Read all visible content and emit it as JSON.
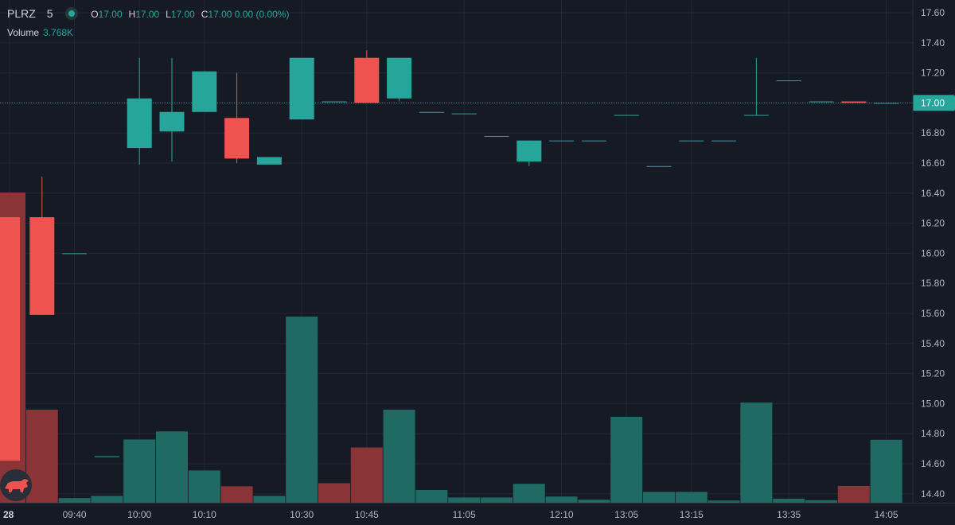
{
  "symbol": {
    "ticker": "PLRZ",
    "interval": "5",
    "status": "market-open"
  },
  "ohlc": {
    "o_label": "O",
    "o": "17.00",
    "h_label": "H",
    "h": "17.00",
    "l_label": "L",
    "l": "17.00",
    "c_label": "C",
    "c": "17.00 0.00 (0.00%)"
  },
  "volume": {
    "label": "Volume",
    "value": "3.768K"
  },
  "colors": {
    "up": "#26a69a",
    "down": "#ef5350",
    "bg": "#161a25",
    "grid": "#232733",
    "text": "#d1d4dc"
  },
  "logo_icon": "bull-logo-icon",
  "chart_data": {
    "type": "candlestick",
    "y_ticks": [
      "17.60",
      "17.40",
      "17.20",
      "17.00",
      "16.80",
      "16.60",
      "16.40",
      "16.20",
      "16.00",
      "15.80",
      "15.60",
      "15.40",
      "15.20",
      "15.00",
      "14.80",
      "14.60",
      "14.40"
    ],
    "ylim": [
      14.38,
      17.66
    ],
    "x_tick_labels": [
      "28",
      "09:40",
      "10:00",
      "10:10",
      "10:30",
      "10:45",
      "11:05",
      "12:10",
      "13:05",
      "13:15",
      "13:35",
      "14:05"
    ],
    "x_tick_bars": [
      0,
      2,
      4,
      6,
      9,
      11,
      14,
      17,
      19,
      21,
      24,
      27
    ],
    "last_price": "17.00",
    "candles": [
      {
        "o": 16.24,
        "h": 16.24,
        "l": 14.62,
        "c": 14.62,
        "v": 1.0
      },
      {
        "o": 16.24,
        "h": 16.51,
        "l": 15.59,
        "c": 15.59,
        "v": 0.3
      },
      {
        "o": 16.0,
        "h": 16.0,
        "l": 16.0,
        "c": 16.0,
        "v": 0.015
      },
      {
        "o": 14.65,
        "h": 14.65,
        "l": 14.65,
        "c": 14.65,
        "v": 0.022
      },
      {
        "o": 16.7,
        "h": 17.3,
        "l": 16.59,
        "c": 17.03,
        "v": 0.204
      },
      {
        "o": 16.81,
        "h": 17.3,
        "l": 16.61,
        "c": 16.94,
        "v": 0.23
      },
      {
        "o": 16.94,
        "h": 17.21,
        "l": 16.94,
        "c": 17.21,
        "v": 0.104
      },
      {
        "o": 16.9,
        "h": 17.2,
        "l": 16.6,
        "c": 16.63,
        "v": 0.053
      },
      {
        "o": 16.59,
        "h": 16.64,
        "l": 16.59,
        "c": 16.64,
        "v": 0.022
      },
      {
        "o": 16.89,
        "h": 17.3,
        "l": 16.89,
        "c": 17.3,
        "v": 0.6
      },
      {
        "o": 17.01,
        "h": 17.01,
        "l": 17.01,
        "c": 17.01,
        "v": 0.063
      },
      {
        "o": 17.3,
        "h": 17.35,
        "l": 17.0,
        "c": 17.0,
        "v": 0.178
      },
      {
        "o": 17.03,
        "h": 17.3,
        "l": 17.01,
        "c": 17.3,
        "v": 0.3
      },
      {
        "o": 16.94,
        "h": 16.94,
        "l": 16.94,
        "c": 16.94,
        "v": 0.041
      },
      {
        "o": 16.93,
        "h": 16.93,
        "l": 16.93,
        "c": 16.93,
        "v": 0.017
      },
      {
        "o": 16.78,
        "h": 16.78,
        "l": 16.78,
        "c": 16.78,
        "v": 0.017
      },
      {
        "o": 16.61,
        "h": 16.75,
        "l": 16.58,
        "c": 16.75,
        "v": 0.061
      },
      {
        "o": 16.75,
        "h": 16.75,
        "l": 16.75,
        "c": 16.75,
        "v": 0.02
      },
      {
        "o": 16.75,
        "h": 16.75,
        "l": 16.75,
        "c": 16.75,
        "v": 0.01
      },
      {
        "o": 16.92,
        "h": 16.92,
        "l": 16.92,
        "c": 16.92,
        "v": 0.277
      },
      {
        "o": 16.58,
        "h": 16.58,
        "l": 16.58,
        "c": 16.58,
        "v": 0.035
      },
      {
        "o": 16.75,
        "h": 16.75,
        "l": 16.75,
        "c": 16.75,
        "v": 0.035
      },
      {
        "o": 16.75,
        "h": 16.75,
        "l": 16.75,
        "c": 16.75,
        "v": 0.007
      },
      {
        "o": 16.92,
        "h": 17.3,
        "l": 16.92,
        "c": 16.92,
        "v": 0.323
      },
      {
        "o": 17.15,
        "h": 17.15,
        "l": 17.15,
        "c": 17.15,
        "v": 0.013
      },
      {
        "o": 17.01,
        "h": 17.01,
        "l": 17.01,
        "c": 17.01,
        "v": 0.008
      },
      {
        "o": 17.01,
        "h": 17.01,
        "l": 17.0,
        "c": 17.0,
        "v": 0.054
      },
      {
        "o": 17.0,
        "h": 17.0,
        "l": 17.0,
        "c": 17.0,
        "v": 0.203
      }
    ],
    "volume_directions": [
      "down",
      "down",
      "up",
      "up",
      "up",
      "up",
      "up",
      "down",
      "up",
      "up",
      "down",
      "down",
      "up",
      "up",
      "up",
      "up",
      "up",
      "up",
      "up",
      "up",
      "up",
      "up",
      "up",
      "up",
      "up",
      "up",
      "down",
      "up"
    ]
  }
}
